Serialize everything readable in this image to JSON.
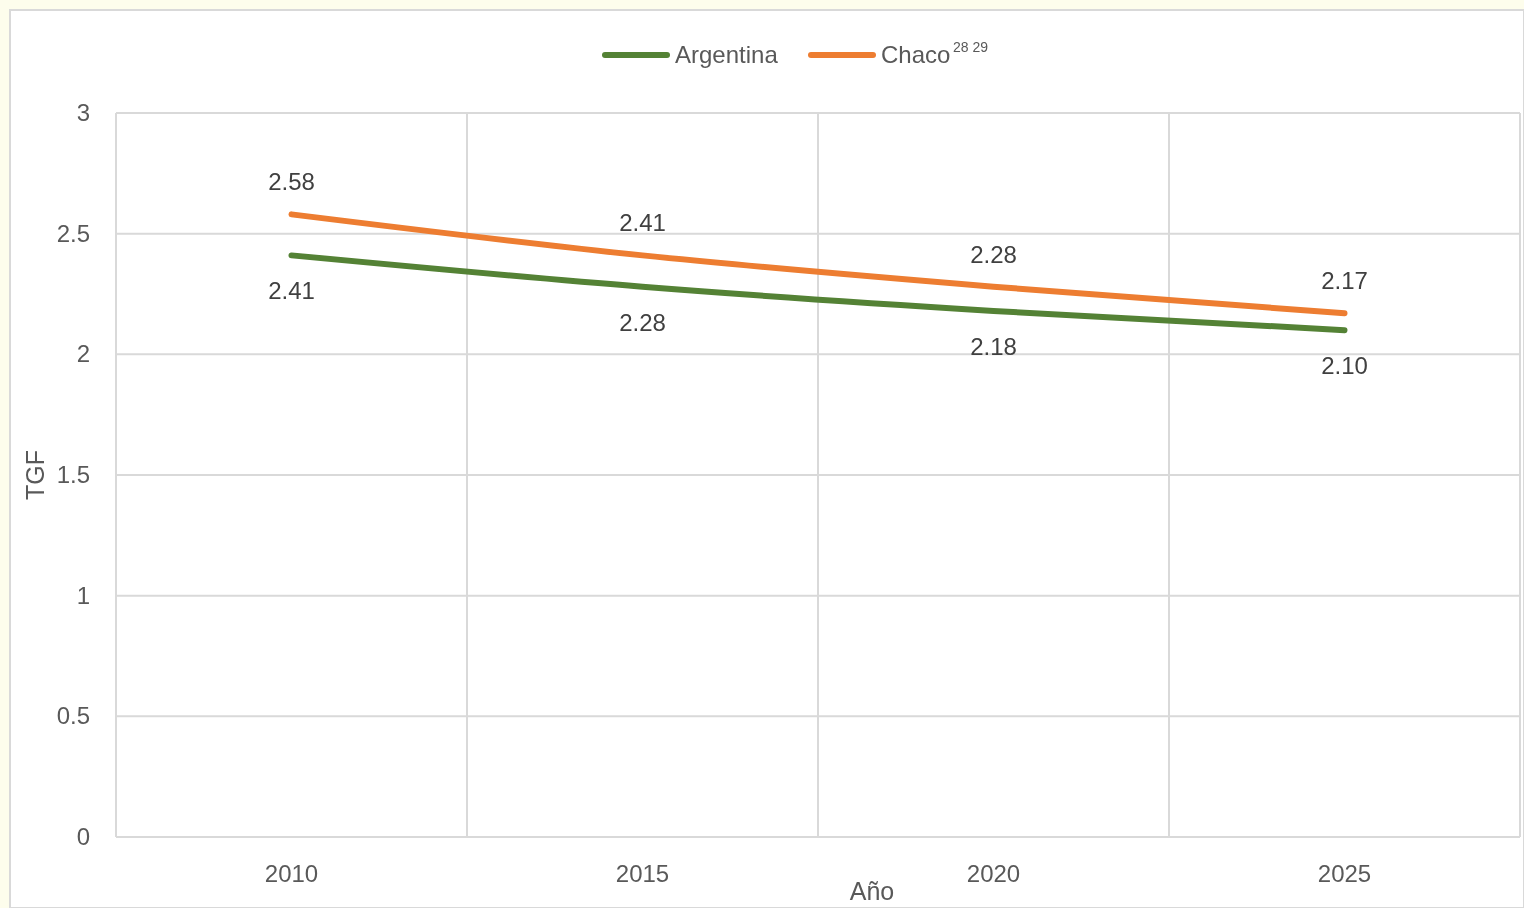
{
  "chart_data": {
    "type": "line",
    "categories": [
      "2010",
      "2015",
      "2020",
      "2025"
    ],
    "series": [
      {
        "name": "Argentina",
        "color": "#548235",
        "values": [
          2.41,
          2.28,
          2.18,
          2.1
        ],
        "value_labels": [
          "2.41",
          "2.28",
          "2.18",
          "2.10"
        ]
      },
      {
        "name": "Chaco",
        "color": "#ed7d31",
        "values": [
          2.58,
          2.41,
          2.28,
          2.17
        ],
        "value_labels": [
          "2.58",
          "2.41",
          "2.28",
          "2.17"
        ]
      }
    ],
    "xlabel": "Año",
    "ylabel": "TGF",
    "ylim": [
      0,
      3
    ],
    "yticks": [
      0,
      0.5,
      1,
      1.5,
      2,
      2.5,
      3
    ],
    "grid": true,
    "legend": "top",
    "marker": "none",
    "line_style": "solid",
    "annotations": [
      "28 29"
    ]
  }
}
